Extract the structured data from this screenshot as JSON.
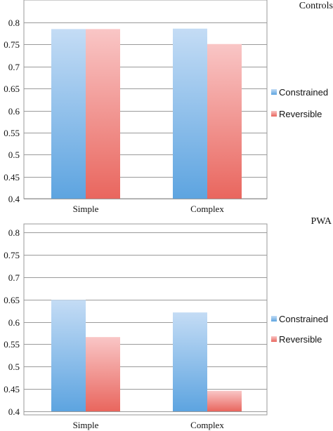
{
  "chart_data": [
    {
      "type": "bar",
      "title": "Controls",
      "categories": [
        "Simple",
        "Complex"
      ],
      "series": [
        {
          "name": "Constrained",
          "values": [
            0.785,
            0.786
          ]
        },
        {
          "name": "Reversible",
          "values": [
            0.785,
            0.751
          ]
        }
      ],
      "ylim": [
        0.4,
        0.8
      ],
      "yticks": [
        "0.4",
        "0.45",
        "0.5",
        "0.55",
        "0.6",
        "0.65",
        "0.7",
        "0.75",
        "0.8"
      ],
      "grid": true,
      "legend_position": "right",
      "xlabel": "",
      "ylabel": ""
    },
    {
      "type": "bar",
      "title": "PWA",
      "categories": [
        "Simple",
        "Complex"
      ],
      "series": [
        {
          "name": "Constrained",
          "values": [
            0.649,
            0.621
          ]
        },
        {
          "name": "Reversible",
          "values": [
            0.566,
            0.446
          ]
        }
      ],
      "ylim": [
        0.4,
        0.8
      ],
      "yticks": [
        "0.4",
        "0.45",
        "0.5",
        "0.55",
        "0.6",
        "0.65",
        "0.7",
        "0.75",
        "0.8"
      ],
      "grid": true,
      "legend_position": "right",
      "xlabel": "",
      "ylabel": ""
    }
  ],
  "colors": {
    "constrained_top": "#c4dcf5",
    "constrained_bottom": "#5da4e0",
    "reversible_top": "#f9c6c6",
    "reversible_bottom": "#e9665e"
  }
}
